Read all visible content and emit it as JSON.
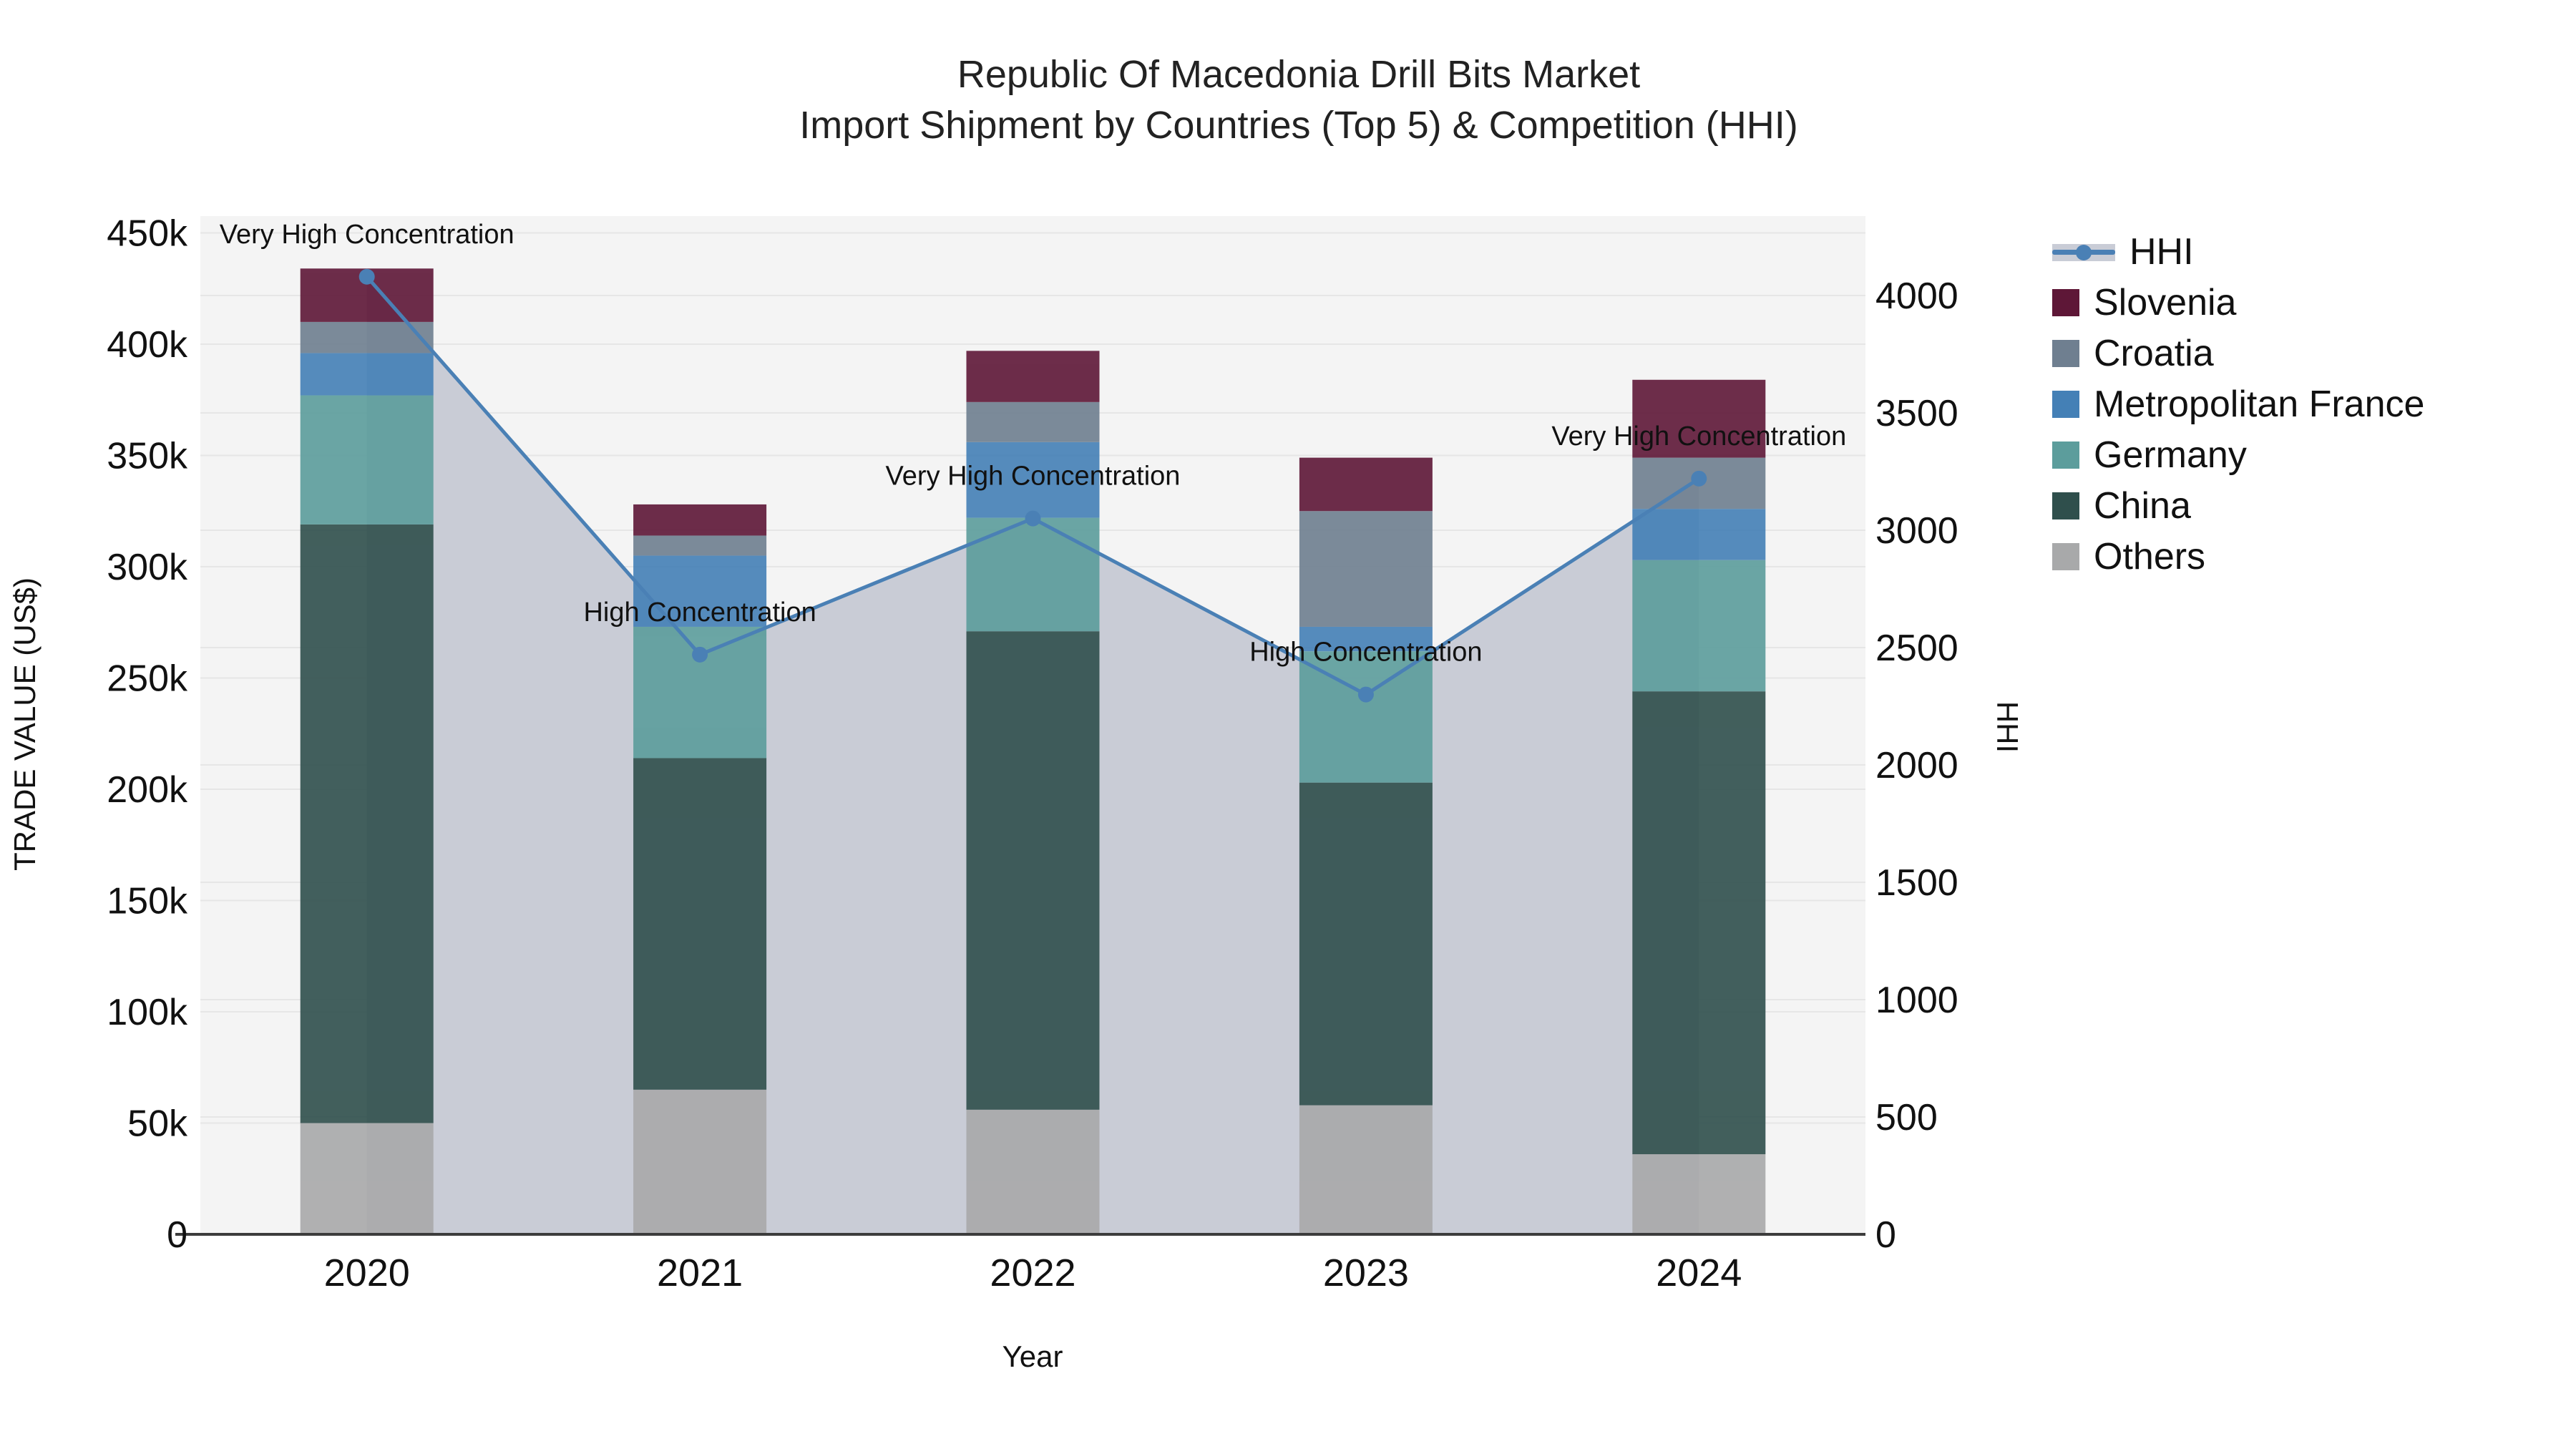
{
  "title": {
    "line1": "Republic Of Macedonia Drill Bits Market",
    "line2": "Import Shipment by Countries (Top 5) & Competition (HHI)"
  },
  "axes": {
    "x_title": "Year",
    "y_left_title": "TRADE VALUE (US$)",
    "y_right_title": "HHI",
    "y_left_tick_labels": [
      "0",
      "50k",
      "100k",
      "150k",
      "200k",
      "250k",
      "300k",
      "350k",
      "400k",
      "450k"
    ],
    "y_right_tick_labels": [
      "0",
      "500",
      "1000",
      "1500",
      "2000",
      "2500",
      "3000",
      "3500",
      "4000"
    ]
  },
  "legend": {
    "items": [
      {
        "label": "HHI",
        "kind": "line",
        "color": "#4a80b5",
        "band_color": "#c9ccd6"
      },
      {
        "label": "Slovenia",
        "kind": "swatch",
        "color": "#5e1737"
      },
      {
        "label": "Croatia",
        "kind": "swatch",
        "color": "#6f7f90"
      },
      {
        "label": "Metropolitan France",
        "kind": "swatch",
        "color": "#4480b6"
      },
      {
        "label": "Germany",
        "kind": "swatch",
        "color": "#5c9d9c"
      },
      {
        "label": "China",
        "kind": "swatch",
        "color": "#2f4f4c"
      },
      {
        "label": "Others",
        "kind": "swatch",
        "color": "#a8a9aa"
      }
    ]
  },
  "chart_data": {
    "type": "bar",
    "subtype": "stacked-bars-with-line-overlay",
    "title": "Republic Of Macedonia Drill Bits Market — Import Shipment by Countries (Top 5) & Competition (HHI)",
    "categories": [
      2020,
      2021,
      2022,
      2023,
      2024
    ],
    "xlabel": "Year",
    "ylabel_left": "TRADE VALUE (US$)",
    "ylabel_right": "HHI",
    "ylim_left_usd_thousands": [
      0,
      457
    ],
    "ylim_right_hhi": [
      0,
      4300
    ],
    "grid": true,
    "legend_position": "right",
    "value_units": "thousand US$",
    "series": [
      {
        "name": "Others",
        "color": "#a8a9aa",
        "values": [
          50,
          65,
          56,
          58,
          36
        ]
      },
      {
        "name": "China",
        "color": "#2f4f4c",
        "values": [
          269,
          149,
          215,
          145,
          208
        ]
      },
      {
        "name": "Germany",
        "color": "#5c9d9c",
        "values": [
          58,
          59,
          51,
          59,
          59
        ]
      },
      {
        "name": "Metropolitan France",
        "color": "#4480b6",
        "values": [
          19,
          32,
          34,
          11,
          23
        ]
      },
      {
        "name": "Croatia",
        "color": "#6f7f90",
        "values": [
          14,
          9,
          18,
          52,
          23
        ]
      },
      {
        "name": "Slovenia",
        "color": "#5e1737",
        "values": [
          24,
          14,
          23,
          24,
          35
        ]
      }
    ],
    "stack_totals_usd_thousands": [
      434,
      328,
      397,
      349,
      384
    ],
    "hhi_line": {
      "name": "HHI",
      "color": "#4a80b5",
      "fill_color": "#c9ccd6",
      "values": [
        4080,
        2470,
        3050,
        2300,
        3220
      ],
      "annotations": [
        "Very High Concentration",
        "High Concentration",
        "Very High Concentration",
        "High Concentration",
        "Very High Concentration"
      ]
    }
  }
}
